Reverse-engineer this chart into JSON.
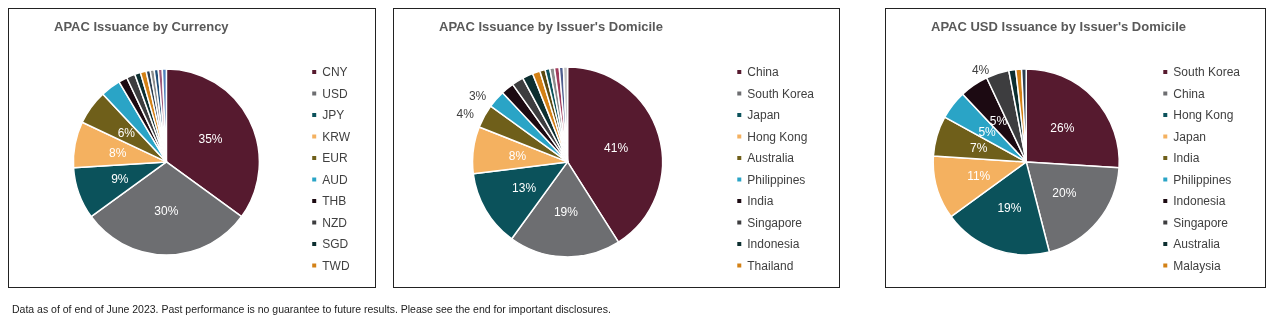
{
  "chart_data": [
    {
      "type": "pie",
      "title": "APAC Issuance by Currency",
      "legend": "right",
      "categories": [
        "CNY",
        "USD",
        "JPY",
        "KRW",
        "EUR",
        "AUD",
        "THB",
        "NZD",
        "SGD",
        "TWD",
        null,
        null,
        null,
        null,
        null
      ],
      "values": [
        35,
        30,
        9,
        8,
        6,
        3.5,
        1.5,
        1.5,
        1,
        1,
        0.7,
        0.7,
        0.7,
        0.7,
        0.7
      ],
      "value_labels": [
        "35%",
        "30%",
        "9%",
        "8%",
        "6%",
        null,
        null,
        null,
        null,
        null,
        null,
        null,
        null,
        null,
        null
      ],
      "colors": [
        "#561a2f",
        "#6d6e71",
        "#0b525b",
        "#f4b160",
        "#6f5f1a",
        "#2aa4c6",
        "#1c0a12",
        "#3d3d3f",
        "#0d2f30",
        "#d38116",
        "#2c3e50",
        "#8c8c8c",
        "#1f4e79",
        "#a05a7a",
        "#4f81bd"
      ],
      "annotations": [
        "Data as of of end of June 2023. Past performance is no guarantee to future results. Please see the end for important disclosures."
      ]
    },
    {
      "type": "pie",
      "title": "APAC Issuance by Issuer's Domicile",
      "legend": "right",
      "categories": [
        "China",
        "South Korea",
        "Japan",
        "Hong Kong",
        "Australia",
        "Philippines",
        "India",
        "Singapore",
        "Indonesia",
        "Thailand",
        null,
        null,
        null,
        null,
        null,
        null
      ],
      "values": [
        41,
        19,
        13,
        8,
        4,
        3,
        2.2,
        2,
        1.8,
        1.3,
        0.9,
        0.8,
        0.8,
        0.8,
        0.7,
        0.7
      ],
      "value_labels": [
        "41%",
        "19%",
        "13%",
        "8%",
        "4%",
        "3%",
        null,
        null,
        null,
        null,
        null,
        null,
        null,
        null,
        null,
        null
      ],
      "colors": [
        "#561a2f",
        "#6d6e71",
        "#0b525b",
        "#f4b160",
        "#6f5f1a",
        "#2aa4c6",
        "#1c0a12",
        "#3d3d3f",
        "#0d2f30",
        "#d38116",
        "#5c4a10",
        "#0b525b",
        "#8c8c8c",
        "#a03a5a",
        "#4f5f8f",
        "#c0c0c0"
      ]
    },
    {
      "type": "pie",
      "title": "APAC USD Issuance by Issuer's Domicile",
      "legend": "right",
      "categories": [
        "South Korea",
        "China",
        "Hong Kong",
        "Japan",
        "India",
        "Philippines",
        "Indonesia",
        "Singapore",
        "Australia",
        "Malaysia",
        null
      ],
      "values": [
        26,
        20,
        19,
        11,
        7,
        5,
        5,
        4,
        1.2,
        1,
        0.8
      ],
      "value_labels": [
        "26%",
        "20%",
        "19%",
        "11%",
        "7%",
        "5%",
        "5%",
        "4%",
        null,
        null,
        null
      ],
      "colors": [
        "#561a2f",
        "#6d6e71",
        "#0b525b",
        "#f4b160",
        "#6f5f1a",
        "#2aa4c6",
        "#1c0a12",
        "#3d3d3f",
        "#0d2f30",
        "#d38116",
        "#2c3e50"
      ]
    }
  ]
}
